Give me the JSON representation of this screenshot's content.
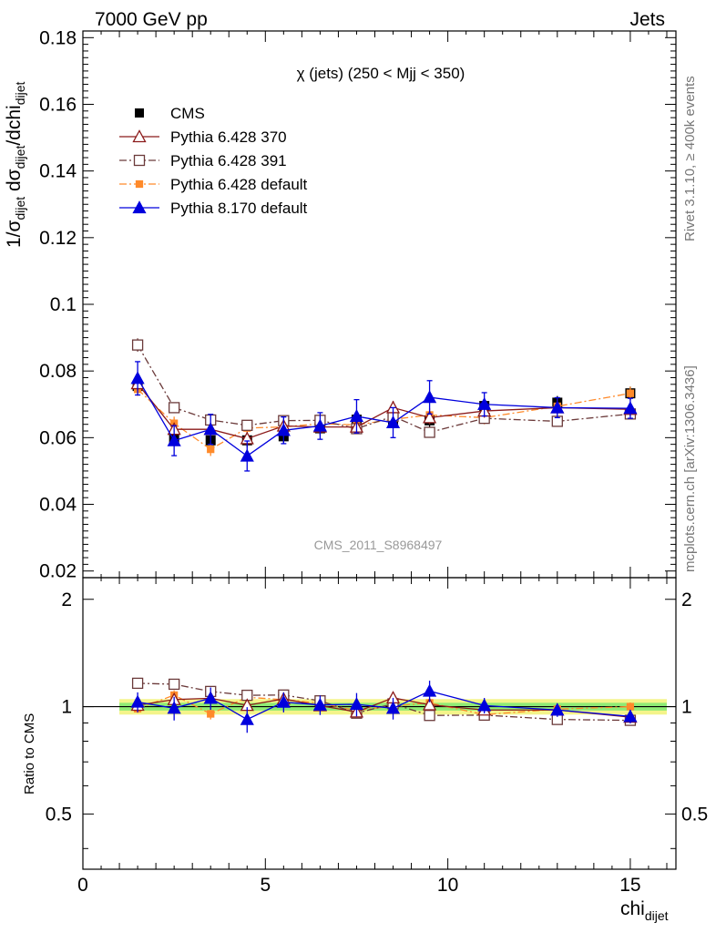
{
  "header": {
    "left": "7000 GeV pp",
    "right": "Jets"
  },
  "side_labels": {
    "rivet": "Rivet 3.1.10, ≥ 400k events",
    "mcplots": "mcplots.cern.ch [arXiv:1306.3436]"
  },
  "watermark": "CMS_2011_S8968497",
  "chart_data": [
    {
      "type": "scatter",
      "title": "χ (jets) (250 < Mjj <  350)",
      "ylabel": {
        "main": "1/σ",
        "sub1": "dijet",
        "mid": " dσ",
        "sub2": "dijet",
        "end": "/dchi",
        "sub3": "dijet"
      },
      "xlim": [
        0,
        16.25
      ],
      "ylim": [
        0.018,
        0.182
      ],
      "yticks": [
        0.02,
        0.04,
        0.06,
        0.08,
        0.1,
        0.12,
        0.14,
        0.16,
        0.18
      ],
      "ytick_labels": [
        "0.02",
        "0.04",
        "0.06",
        "0.08",
        "0.1",
        "0.12",
        "0.14",
        "0.16",
        "0.18"
      ],
      "x": [
        1.5,
        2.5,
        3.5,
        4.5,
        5.5,
        6.5,
        7.5,
        8.5,
        9.5,
        11,
        13,
        15
      ],
      "series": [
        {
          "name": "CMS",
          "color": "#000000",
          "marker": "square-filled",
          "line": "none",
          "values": [
            0.0755,
            0.0597,
            0.0592,
            0.0592,
            0.0604,
            0.0628,
            0.0654,
            0.0652,
            0.0652,
            0.0695,
            0.0705,
            0.0733
          ],
          "errors": [
            0.002,
            0.002,
            0.002,
            0.002,
            0.002,
            0.002,
            0.002,
            0.002,
            0.002,
            0.002,
            0.002,
            0.002
          ]
        },
        {
          "name": "Pythia 6.428 370",
          "color": "#8b1a1a",
          "marker": "triangle-open",
          "line": "solid",
          "values": [
            0.0762,
            0.0625,
            0.0625,
            0.0597,
            0.0635,
            0.0632,
            0.0632,
            0.069,
            0.066,
            0.068,
            0.069,
            0.0685
          ],
          "errors": [
            0.002,
            0.002,
            0.002,
            0.002,
            0.002,
            0.002,
            0.002,
            0.002,
            0.002,
            0.002,
            0.002,
            0.002
          ]
        },
        {
          "name": "Pythia 6.428 391",
          "color": "#6b3a3a",
          "marker": "square-open",
          "line": "dashdot",
          "values": [
            0.0878,
            0.069,
            0.0653,
            0.0637,
            0.0651,
            0.0652,
            0.0627,
            0.0664,
            0.0616,
            0.0658,
            0.0649,
            0.0671
          ],
          "errors": [
            0.002,
            0.0015,
            0.0015,
            0.0015,
            0.0015,
            0.0015,
            0.0015,
            0.0015,
            0.0015,
            0.0015,
            0.0015,
            0.0015
          ]
        },
        {
          "name": "Pythia 6.428 default",
          "color": "#ff8a2a",
          "marker": "square-filled-small",
          "line": "dashdot",
          "values": [
            0.0745,
            0.0643,
            0.0565,
            0.0629,
            0.0632,
            0.0642,
            0.0638,
            0.0655,
            0.0668,
            0.066,
            0.0694,
            0.0733
          ],
          "errors": [
            0.002,
            0.002,
            0.002,
            0.002,
            0.002,
            0.002,
            0.002,
            0.002,
            0.002,
            0.002,
            0.002,
            0.002
          ]
        },
        {
          "name": "Pythia 8.170 default",
          "color": "#0000dd",
          "marker": "triangle-filled",
          "line": "solid",
          "values": [
            0.0778,
            0.0591,
            0.0625,
            0.0545,
            0.0622,
            0.0635,
            0.0664,
            0.0645,
            0.0721,
            0.07,
            0.069,
            0.0688
          ],
          "errors": [
            0.005,
            0.0045,
            0.0045,
            0.0045,
            0.004,
            0.004,
            0.005,
            0.0045,
            0.005,
            0.0035,
            0.003,
            0.003
          ]
        }
      ]
    },
    {
      "type": "scatter",
      "ylabel": "Ratio to CMS",
      "xlabel_main": "chi",
      "xlabel_sub": "dijet",
      "xlim": [
        0,
        16.25
      ],
      "ylim": [
        0.35,
        2.3
      ],
      "log_y": true,
      "yticks": [
        0.5,
        1,
        2
      ],
      "ytick_labels": [
        "0.5",
        "1",
        "2"
      ],
      "xticks": [
        0,
        5,
        10,
        15
      ],
      "xtick_labels": [
        "0",
        "5",
        "10",
        "15"
      ],
      "band_inner_color": "#6ee86e",
      "band_outer_color": "#f4f48a"
    }
  ]
}
